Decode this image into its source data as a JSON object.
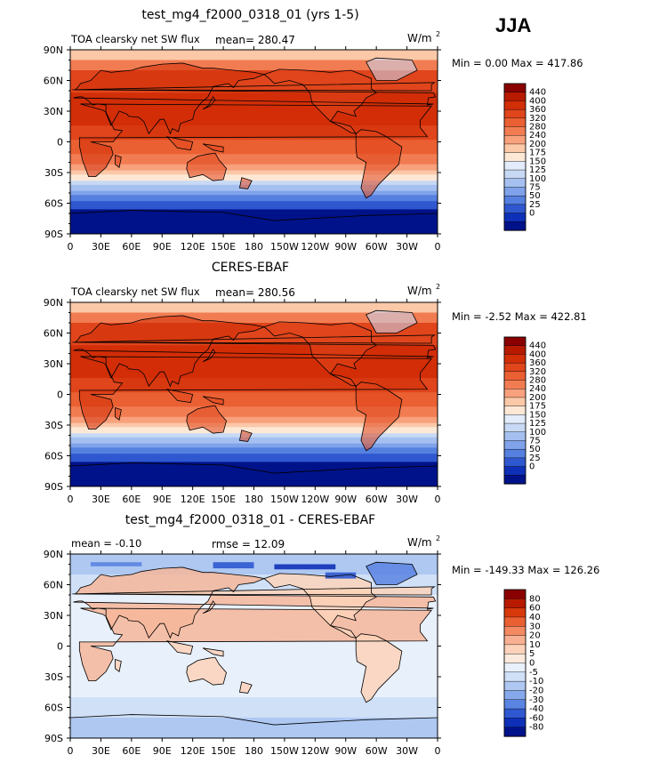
{
  "season": "JJA",
  "chart_data": [
    {
      "type": "heatmap",
      "title": "test_mg4_f2000_0318_01 (yrs 1-5)",
      "left_label": "TOA clearsky net SW flux",
      "stat_label": "mean= 280.47",
      "units": "W/m",
      "units_exp": "2",
      "minmax": "Min =    0.00 Max = 417.86",
      "x_ticks": [
        "0",
        "30E",
        "60E",
        "90E",
        "120E",
        "150E",
        "180",
        "150W",
        "120W",
        "90W",
        "60W",
        "30W",
        "0"
      ],
      "y_ticks": [
        "90N",
        "60N",
        "30N",
        "0",
        "30S",
        "60S",
        "90S"
      ],
      "colorbar_levels": [
        "440",
        "400",
        "360",
        "320",
        "280",
        "240",
        "200",
        "175",
        "150",
        "125",
        "100",
        "75",
        "50",
        "25",
        "0"
      ],
      "colorbar_colors": [
        "#8a0000",
        "#b81a00",
        "#d22e08",
        "#e0451c",
        "#ea6032",
        "#f27c52",
        "#f8a17c",
        "#fbc8a8",
        "#fde8d6",
        "#e2ecfa",
        "#c8d9f5",
        "#a5c0f0",
        "#7fa2ea",
        "#5580e0",
        "#2f58d0",
        "#0e30b8",
        "#00128a"
      ]
    },
    {
      "type": "heatmap",
      "title": "CERES-EBAF",
      "left_label": "TOA clearsky net SW flux",
      "stat_label": "mean= 280.56",
      "units": "W/m",
      "units_exp": "2",
      "minmax": "Min =  -2.52 Max = 422.81",
      "x_ticks": [
        "0",
        "30E",
        "60E",
        "90E",
        "120E",
        "150E",
        "180",
        "150W",
        "120W",
        "90W",
        "60W",
        "30W",
        "0"
      ],
      "y_ticks": [
        "90N",
        "60N",
        "30N",
        "0",
        "30S",
        "60S",
        "90S"
      ],
      "colorbar_levels": [
        "440",
        "400",
        "360",
        "320",
        "280",
        "240",
        "200",
        "175",
        "150",
        "125",
        "100",
        "75",
        "50",
        "25",
        "0"
      ],
      "colorbar_colors": [
        "#8a0000",
        "#b81a00",
        "#d22e08",
        "#e0451c",
        "#ea6032",
        "#f27c52",
        "#f8a17c",
        "#fbc8a8",
        "#fde8d6",
        "#e2ecfa",
        "#c8d9f5",
        "#a5c0f0",
        "#7fa2ea",
        "#5580e0",
        "#2f58d0",
        "#0e30b8",
        "#00128a"
      ]
    },
    {
      "type": "heatmap",
      "title": "test_mg4_f2000_0318_01 - CERES-EBAF",
      "left_label": "mean =   -0.10",
      "stat_label": "rmse =   12.09",
      "units": "W/m",
      "units_exp": "2",
      "minmax": "Min = -149.33 Max = 126.26",
      "x_ticks": [
        "0",
        "30E",
        "60E",
        "90E",
        "120E",
        "150E",
        "180",
        "150W",
        "120W",
        "90W",
        "60W",
        "30W",
        "0"
      ],
      "y_ticks": [
        "90N",
        "60N",
        "30N",
        "0",
        "30S",
        "60S",
        "90S"
      ],
      "colorbar_levels": [
        "80",
        "60",
        "40",
        "30",
        "20",
        "10",
        "5",
        "0",
        "-5",
        "-10",
        "-20",
        "-30",
        "-40",
        "-60",
        "-80"
      ],
      "colorbar_colors": [
        "#8a0000",
        "#b81a00",
        "#d8390c",
        "#ea6032",
        "#f48a62",
        "#f9b092",
        "#fcd2ba",
        "#fdeade",
        "#e8f0fb",
        "#cfe0f7",
        "#aec8f2",
        "#86a9ec",
        "#5a84e2",
        "#2f58d0",
        "#0e30b8",
        "#00128a"
      ]
    }
  ]
}
